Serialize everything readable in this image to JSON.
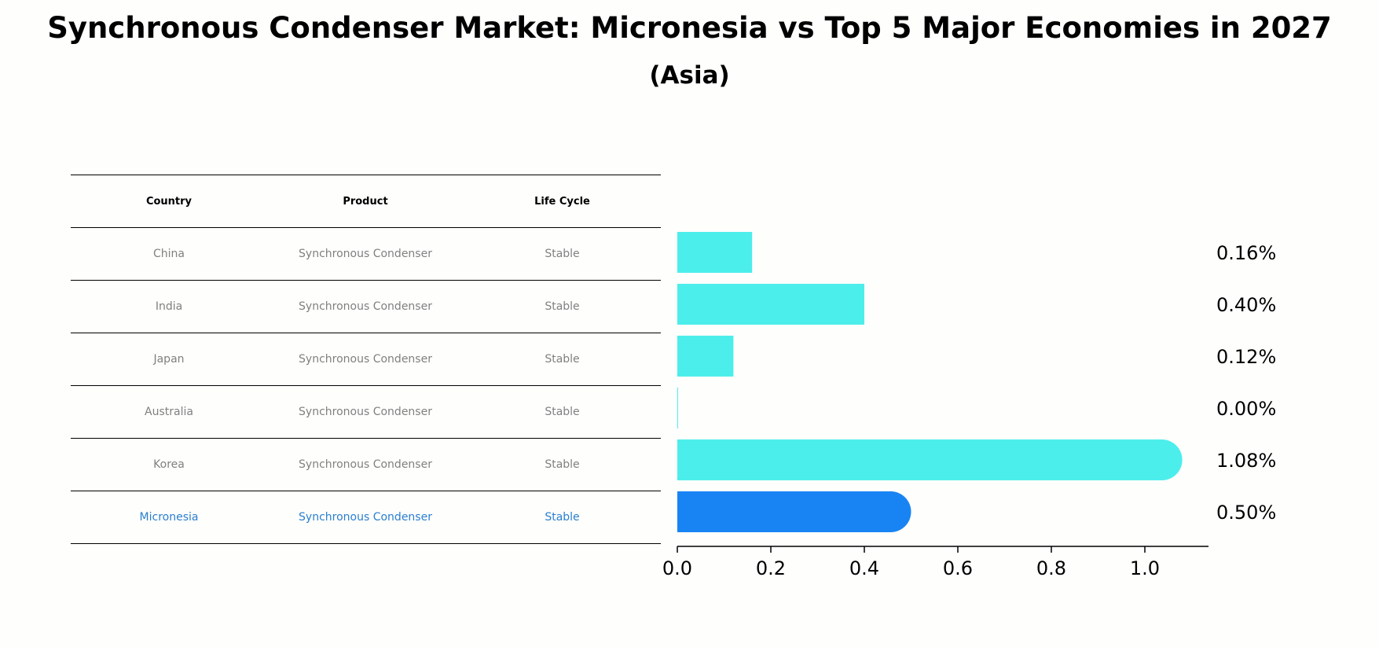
{
  "title": "Synchronous Condenser Market: Micronesia vs Top 5 Major Economies in 2027",
  "subtitle": "(Asia)",
  "table": {
    "headers": [
      "Country",
      "Product",
      "Life Cycle"
    ],
    "rows": [
      {
        "country": "China",
        "product": "Synchronous Condenser",
        "life_cycle": "Stable"
      },
      {
        "country": "India",
        "product": "Synchronous Condenser",
        "life_cycle": "Stable"
      },
      {
        "country": "Japan",
        "product": "Synchronous Condenser",
        "life_cycle": "Stable"
      },
      {
        "country": "Australia",
        "product": "Synchronous Condenser",
        "life_cycle": "Stable"
      },
      {
        "country": "Korea",
        "product": "Synchronous Condenser",
        "life_cycle": "Stable"
      },
      {
        "country": "Micronesia",
        "product": "Synchronous Condenser",
        "life_cycle": "Stable"
      }
    ]
  },
  "colors": {
    "bar": "#4ceeeb",
    "highlight_bar": "#1884f4",
    "highlight_text": "#2a7fd0",
    "muted_text": "#808080"
  },
  "chart_data": {
    "type": "bar",
    "orientation": "horizontal",
    "categories": [
      "China",
      "India",
      "Japan",
      "Australia",
      "Korea",
      "Micronesia"
    ],
    "values": [
      0.16,
      0.4,
      0.12,
      0.0,
      1.08,
      0.5
    ],
    "value_labels": [
      "0.16%",
      "0.40%",
      "0.12%",
      "0.00%",
      "1.08%",
      "0.50%"
    ],
    "highlight": "Micronesia",
    "xlim": [
      0,
      1.14
    ],
    "xticks": [
      0.0,
      0.2,
      0.4,
      0.6,
      0.8,
      1.0
    ],
    "xtick_labels": [
      "0.0",
      "0.2",
      "0.4",
      "0.6",
      "0.8",
      "1.0"
    ],
    "xlabel": "",
    "ylabel": ""
  }
}
